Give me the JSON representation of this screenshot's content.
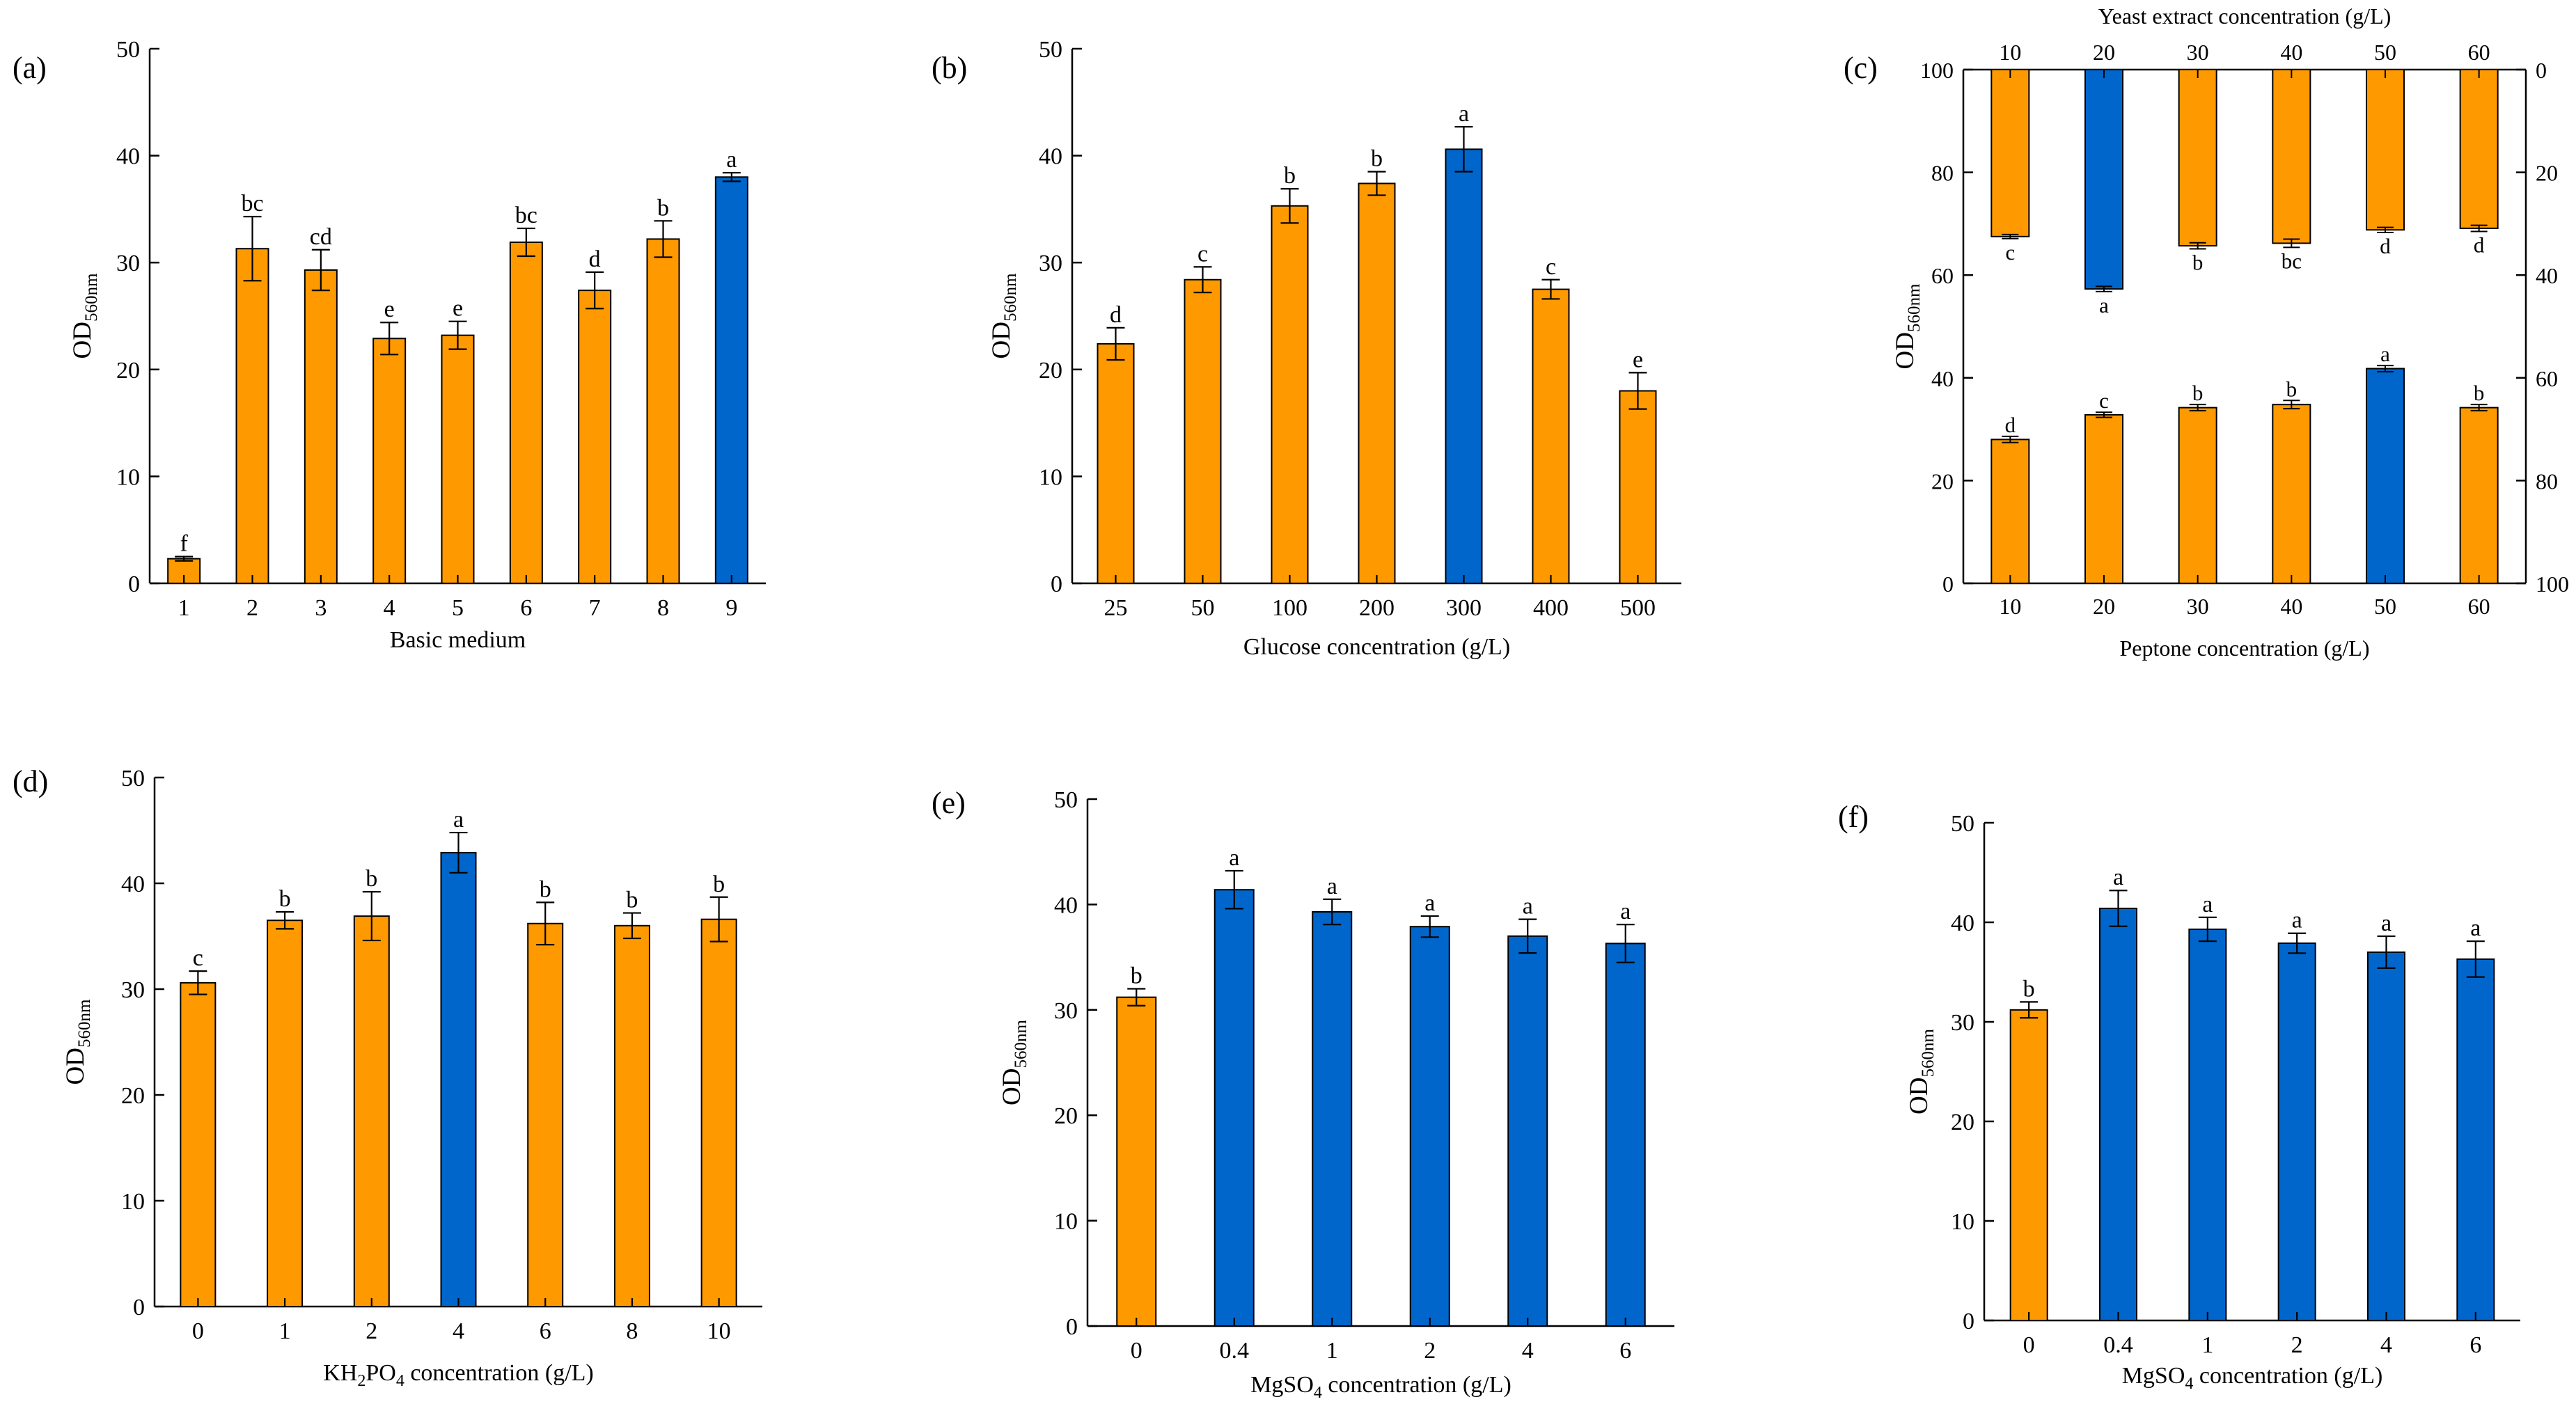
{
  "colors": {
    "orange": "#FF9900",
    "blue": "#0066CC",
    "stroke": "#000000"
  },
  "chart_data": [
    {
      "panel": "(a)",
      "type": "bar",
      "categories": [
        "1",
        "2",
        "3",
        "4",
        "5",
        "6",
        "7",
        "8",
        "9"
      ],
      "values": [
        2.3,
        31.3,
        29.3,
        22.9,
        23.2,
        31.9,
        27.4,
        32.2,
        38.0
      ],
      "errors": [
        0.2,
        3.0,
        1.9,
        1.5,
        1.3,
        1.3,
        1.7,
        1.7,
        0.4
      ],
      "letters": [
        "f",
        "bc",
        "cd",
        "e",
        "e",
        "bc",
        "d",
        "b",
        "a"
      ],
      "colors": [
        "orange",
        "orange",
        "orange",
        "orange",
        "orange",
        "orange",
        "orange",
        "orange",
        "blue"
      ],
      "xlabel": "Basic medium",
      "ylabel": "OD",
      "ylabel_sub": "560nm",
      "ylim": [
        0,
        50
      ],
      "yticks": [
        "0",
        "10",
        "20",
        "30",
        "40",
        "50"
      ]
    },
    {
      "panel": "(b)",
      "type": "bar",
      "categories": [
        "25",
        "50",
        "100",
        "200",
        "300",
        "400",
        "500"
      ],
      "values": [
        22.4,
        28.4,
        35.3,
        37.4,
        40.6,
        27.5,
        18.0
      ],
      "errors": [
        1.5,
        1.2,
        1.6,
        1.1,
        2.1,
        0.9,
        1.7
      ],
      "letters": [
        "d",
        "c",
        "b",
        "b",
        "a",
        "c",
        "e"
      ],
      "colors": [
        "orange",
        "orange",
        "orange",
        "orange",
        "blue",
        "orange",
        "orange"
      ],
      "xlabel": "Glucose concentration (g/L)",
      "ylabel": "OD",
      "ylabel_sub": "560nm",
      "ylim": [
        0,
        50
      ],
      "yticks": [
        "0",
        "10",
        "20",
        "30",
        "40",
        "50"
      ]
    },
    {
      "panel": "(c)",
      "type": "bar",
      "categories": [
        "10",
        "20",
        "30",
        "40",
        "50",
        "60"
      ],
      "series": [
        {
          "name": "Peptone concentration (g/L)",
          "axis": "bottom-left",
          "values": [
            28.0,
            32.8,
            34.2,
            34.8,
            41.8,
            34.2
          ],
          "errors": [
            0.6,
            0.5,
            0.6,
            0.8,
            0.6,
            0.6
          ],
          "letters": [
            "d",
            "c",
            "b",
            "b",
            "a",
            "b"
          ],
          "colors": [
            "orange",
            "orange",
            "orange",
            "orange",
            "blue",
            "orange"
          ]
        },
        {
          "name": "Yeast extract concentration (g/L)",
          "axis": "top-right-inverted",
          "values": [
            32.5,
            42.7,
            34.3,
            33.8,
            31.2,
            30.9
          ],
          "errors": [
            0.4,
            0.5,
            0.6,
            0.8,
            0.5,
            0.6
          ],
          "letters": [
            "c",
            "a",
            "b",
            "bc",
            "d",
            "d"
          ],
          "colors": [
            "orange",
            "blue",
            "orange",
            "orange",
            "orange",
            "orange"
          ]
        }
      ],
      "xlabel": "Peptone concentration (g/L)",
      "x2label": "Yeast extract concentration (g/L)",
      "ylabel": "OD",
      "ylabel_sub": "560nm",
      "ylim": [
        0,
        100
      ],
      "yticks": [
        "0",
        "20",
        "40",
        "60",
        "80",
        "100"
      ],
      "y2ticks": [
        "0",
        "20",
        "40",
        "60",
        "80",
        "100"
      ]
    },
    {
      "panel": "(d)",
      "type": "bar",
      "categories": [
        "0",
        "1",
        "2",
        "4",
        "6",
        "8",
        "10"
      ],
      "values": [
        30.6,
        36.5,
        36.9,
        42.9,
        36.2,
        36.0,
        36.6
      ],
      "errors": [
        1.1,
        0.8,
        2.3,
        1.9,
        2.0,
        1.2,
        2.1
      ],
      "letters": [
        "c",
        "b",
        "b",
        "a",
        "b",
        "b",
        "b"
      ],
      "colors": [
        "orange",
        "orange",
        "orange",
        "blue",
        "orange",
        "orange",
        "orange"
      ],
      "xlabel": "KH",
      "xlabel_sub1": "2",
      "xlabel_mid": "PO",
      "xlabel_sub2": "4",
      "xlabel_tail": " concentration (g/L)",
      "ylabel": "OD",
      "ylabel_sub": "560nm",
      "ylim": [
        0,
        50
      ],
      "yticks": [
        "0",
        "10",
        "20",
        "30",
        "40",
        "50"
      ]
    },
    {
      "panel": "(e)",
      "type": "bar",
      "categories": [
        "0",
        "0.4",
        "1",
        "2",
        "4",
        "6"
      ],
      "values": [
        31.2,
        41.4,
        39.3,
        37.9,
        37.0,
        36.3
      ],
      "errors": [
        0.8,
        1.8,
        1.2,
        1.0,
        1.6,
        1.8
      ],
      "letters": [
        "b",
        "a",
        "a",
        "a",
        "a",
        "a"
      ],
      "colors": [
        "orange",
        "blue",
        "blue",
        "blue",
        "blue",
        "blue"
      ],
      "xlabel": "MgSO",
      "xlabel_sub1": "4",
      "xlabel_tail": " concentration (g/L)",
      "ylabel": "OD",
      "ylabel_sub": "560nm",
      "ylim": [
        0,
        50
      ],
      "yticks": [
        "0",
        "10",
        "20",
        "30",
        "40",
        "50"
      ]
    },
    {
      "panel": "(f)",
      "type": "bar",
      "categories": [
        "0",
        "0.4",
        "1",
        "2",
        "4",
        "6"
      ],
      "values": [
        31.2,
        41.4,
        39.3,
        37.9,
        37.0,
        36.3
      ],
      "errors": [
        0.8,
        1.8,
        1.2,
        1.0,
        1.6,
        1.8
      ],
      "letters": [
        "b",
        "a",
        "a",
        "a",
        "a",
        "a"
      ],
      "colors": [
        "orange",
        "blue",
        "blue",
        "blue",
        "blue",
        "blue"
      ],
      "xlabel": "MgSO",
      "xlabel_sub1": "4",
      "xlabel_tail": " concentration (g/L)",
      "ylabel": "OD",
      "ylabel_sub": "560nm",
      "ylim": [
        0,
        50
      ],
      "yticks": [
        "0",
        "10",
        "20",
        "30",
        "40",
        "50"
      ]
    }
  ]
}
